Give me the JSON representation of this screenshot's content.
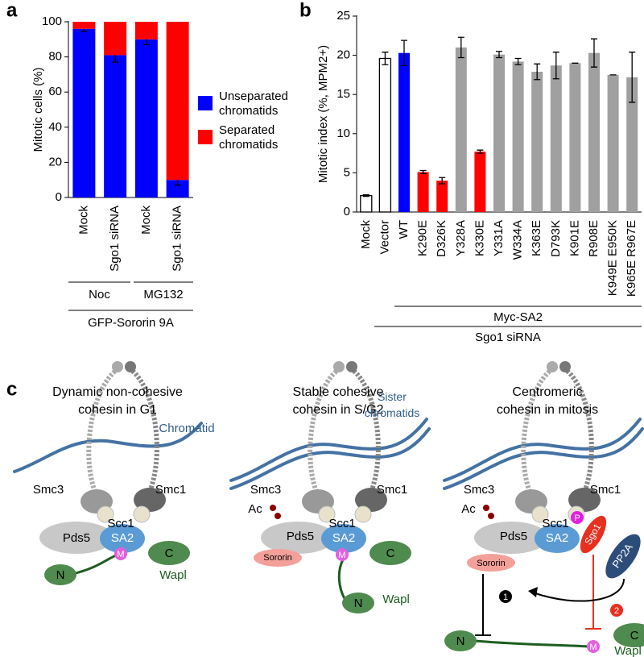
{
  "chart_data": [
    {
      "type": "bar",
      "stacked": true,
      "panel": "a",
      "ylabel": "Mitotic cells (%)",
      "categories": [
        "Mock",
        "Sgo1 siRNA",
        "Mock",
        "Sgo1 siRNA"
      ],
      "series": [
        {
          "name": "Unseparated chromatids",
          "color": "#0000ff",
          "values": [
            96,
            81,
            90,
            10
          ],
          "errors": [
            1.5,
            4,
            3,
            3
          ]
        },
        {
          "name": "Separated chromatids",
          "color": "#ff0000",
          "values": [
            4,
            19,
            10,
            90
          ]
        }
      ],
      "ylim": [
        0,
        100
      ],
      "yticks": [
        0,
        20,
        40,
        60,
        80,
        100
      ],
      "annotations": [
        "Noc",
        "MG132",
        "GFP-Sororin 9A"
      ]
    },
    {
      "type": "bar",
      "panel": "b",
      "ylabel": "Mitotic index (%, MPM2+)",
      "categories": [
        "Mock",
        "Vector",
        "WT",
        "K290E",
        "D326K",
        "Y328A",
        "K330E",
        "Y331A",
        "W334A",
        "K363E",
        "D793K",
        "K901E",
        "R908E",
        "K949E E950K",
        "K965E R967E"
      ],
      "values": [
        2.1,
        19.6,
        20.3,
        5.1,
        4.0,
        21.0,
        7.7,
        20.1,
        19.2,
        17.9,
        18.7,
        19.0,
        20.3,
        17.5,
        17.2
      ],
      "errors": [
        0.1,
        0.8,
        1.6,
        0.2,
        0.4,
        1.3,
        0.2,
        0.4,
        0.4,
        1.0,
        1.7,
        0,
        1.8,
        0,
        3.2
      ],
      "colors": [
        "#ffffff",
        "#ffffff",
        "#0000ff",
        "#ff0000",
        "#ff0000",
        "#a0a0a0",
        "#ff0000",
        "#a0a0a0",
        "#a0a0a0",
        "#a0a0a0",
        "#a0a0a0",
        "#a0a0a0",
        "#a0a0a0",
        "#a0a0a0",
        "#a0a0a0"
      ],
      "ylim": [
        0,
        25
      ],
      "yticks": [
        0,
        5,
        10,
        15,
        20,
        25
      ],
      "annotations": [
        "Myc-SA2",
        "Sgo1 siRNA"
      ]
    }
  ],
  "diagram": {
    "panel": "c",
    "panels": [
      {
        "title": [
          "Dynamic non-cohesive",
          "cohesin in G1"
        ],
        "labels": [
          "Chromatid",
          "Smc3",
          "Smc1",
          "Scc1",
          "Pds5",
          "SA2",
          "M",
          "C",
          "N",
          "Wapl"
        ]
      },
      {
        "title": [
          "Stable cohesive",
          "cohesin in S/G2"
        ],
        "labels": [
          "Sister chromatids",
          "Smc3",
          "Smc1",
          "Ac",
          "Scc1",
          "Pds5",
          "SA2",
          "M",
          "Sororin",
          "C",
          "N",
          "Wapl"
        ]
      },
      {
        "title": [
          "Centromeric",
          "cohesin in mitosis"
        ],
        "labels": [
          "Smc3",
          "Smc1",
          "Ac",
          "Scc1",
          "Pds5",
          "SA2",
          "P",
          "Sgo1",
          "PP2A",
          "Sororin",
          "1",
          "2",
          "M",
          "C",
          "N",
          "Wapl"
        ]
      }
    ]
  }
}
